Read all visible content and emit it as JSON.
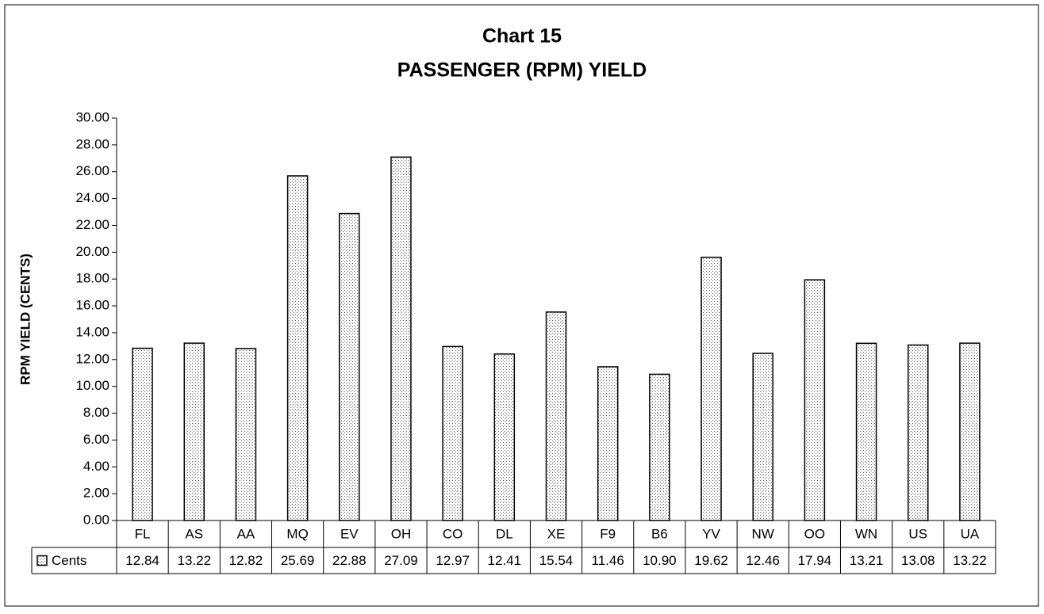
{
  "chart_data": {
    "type": "bar",
    "title": [
      "Chart 15",
      "PASSENGER (RPM) YIELD"
    ],
    "y_label": "RPM YIELD (CENTS)",
    "categories": [
      "FL",
      "AS",
      "AA",
      "MQ",
      "EV",
      "OH",
      "CO",
      "DL",
      "XE",
      "F9",
      "B6",
      "YV",
      "NW",
      "OO",
      "WN",
      "US",
      "UA"
    ],
    "series": [
      {
        "name": "Cents",
        "color": "#ffffff",
        "values": [
          12.84,
          13.22,
          12.82,
          25.69,
          22.88,
          27.09,
          12.97,
          12.41,
          15.54,
          11.46,
          10.9,
          19.62,
          12.46,
          17.94,
          13.21,
          13.08,
          13.22
        ],
        "value_labels": [
          "12.84",
          "13.22",
          "12.82",
          "25.69",
          "22.88",
          "27.09",
          "12.97",
          "12.41",
          "15.54",
          "11.46",
          "10.90",
          "19.62",
          "12.46",
          "17.94",
          "13.21",
          "13.08",
          "13.22"
        ]
      }
    ],
    "ylim": [
      0,
      30
    ],
    "yticks": [
      {
        "value": 0,
        "label": "0.00"
      },
      {
        "value": 2,
        "label": "2.00"
      },
      {
        "value": 4,
        "label": "4.00"
      },
      {
        "value": 6,
        "label": "6.00"
      },
      {
        "value": 8,
        "label": "8.00"
      },
      {
        "value": 10,
        "label": "10.00"
      },
      {
        "value": 12,
        "label": "12.00"
      },
      {
        "value": 14,
        "label": "14.00"
      },
      {
        "value": 16,
        "label": "16.00"
      },
      {
        "value": 18,
        "label": "18.00"
      },
      {
        "value": 20,
        "label": "20.00"
      },
      {
        "value": 22,
        "label": "22.00"
      },
      {
        "value": 24,
        "label": "24.00"
      },
      {
        "value": 26,
        "label": "26.00"
      },
      {
        "value": 28,
        "label": "28.00"
      },
      {
        "value": 30,
        "label": "30.00"
      }
    ],
    "grid": false
  }
}
